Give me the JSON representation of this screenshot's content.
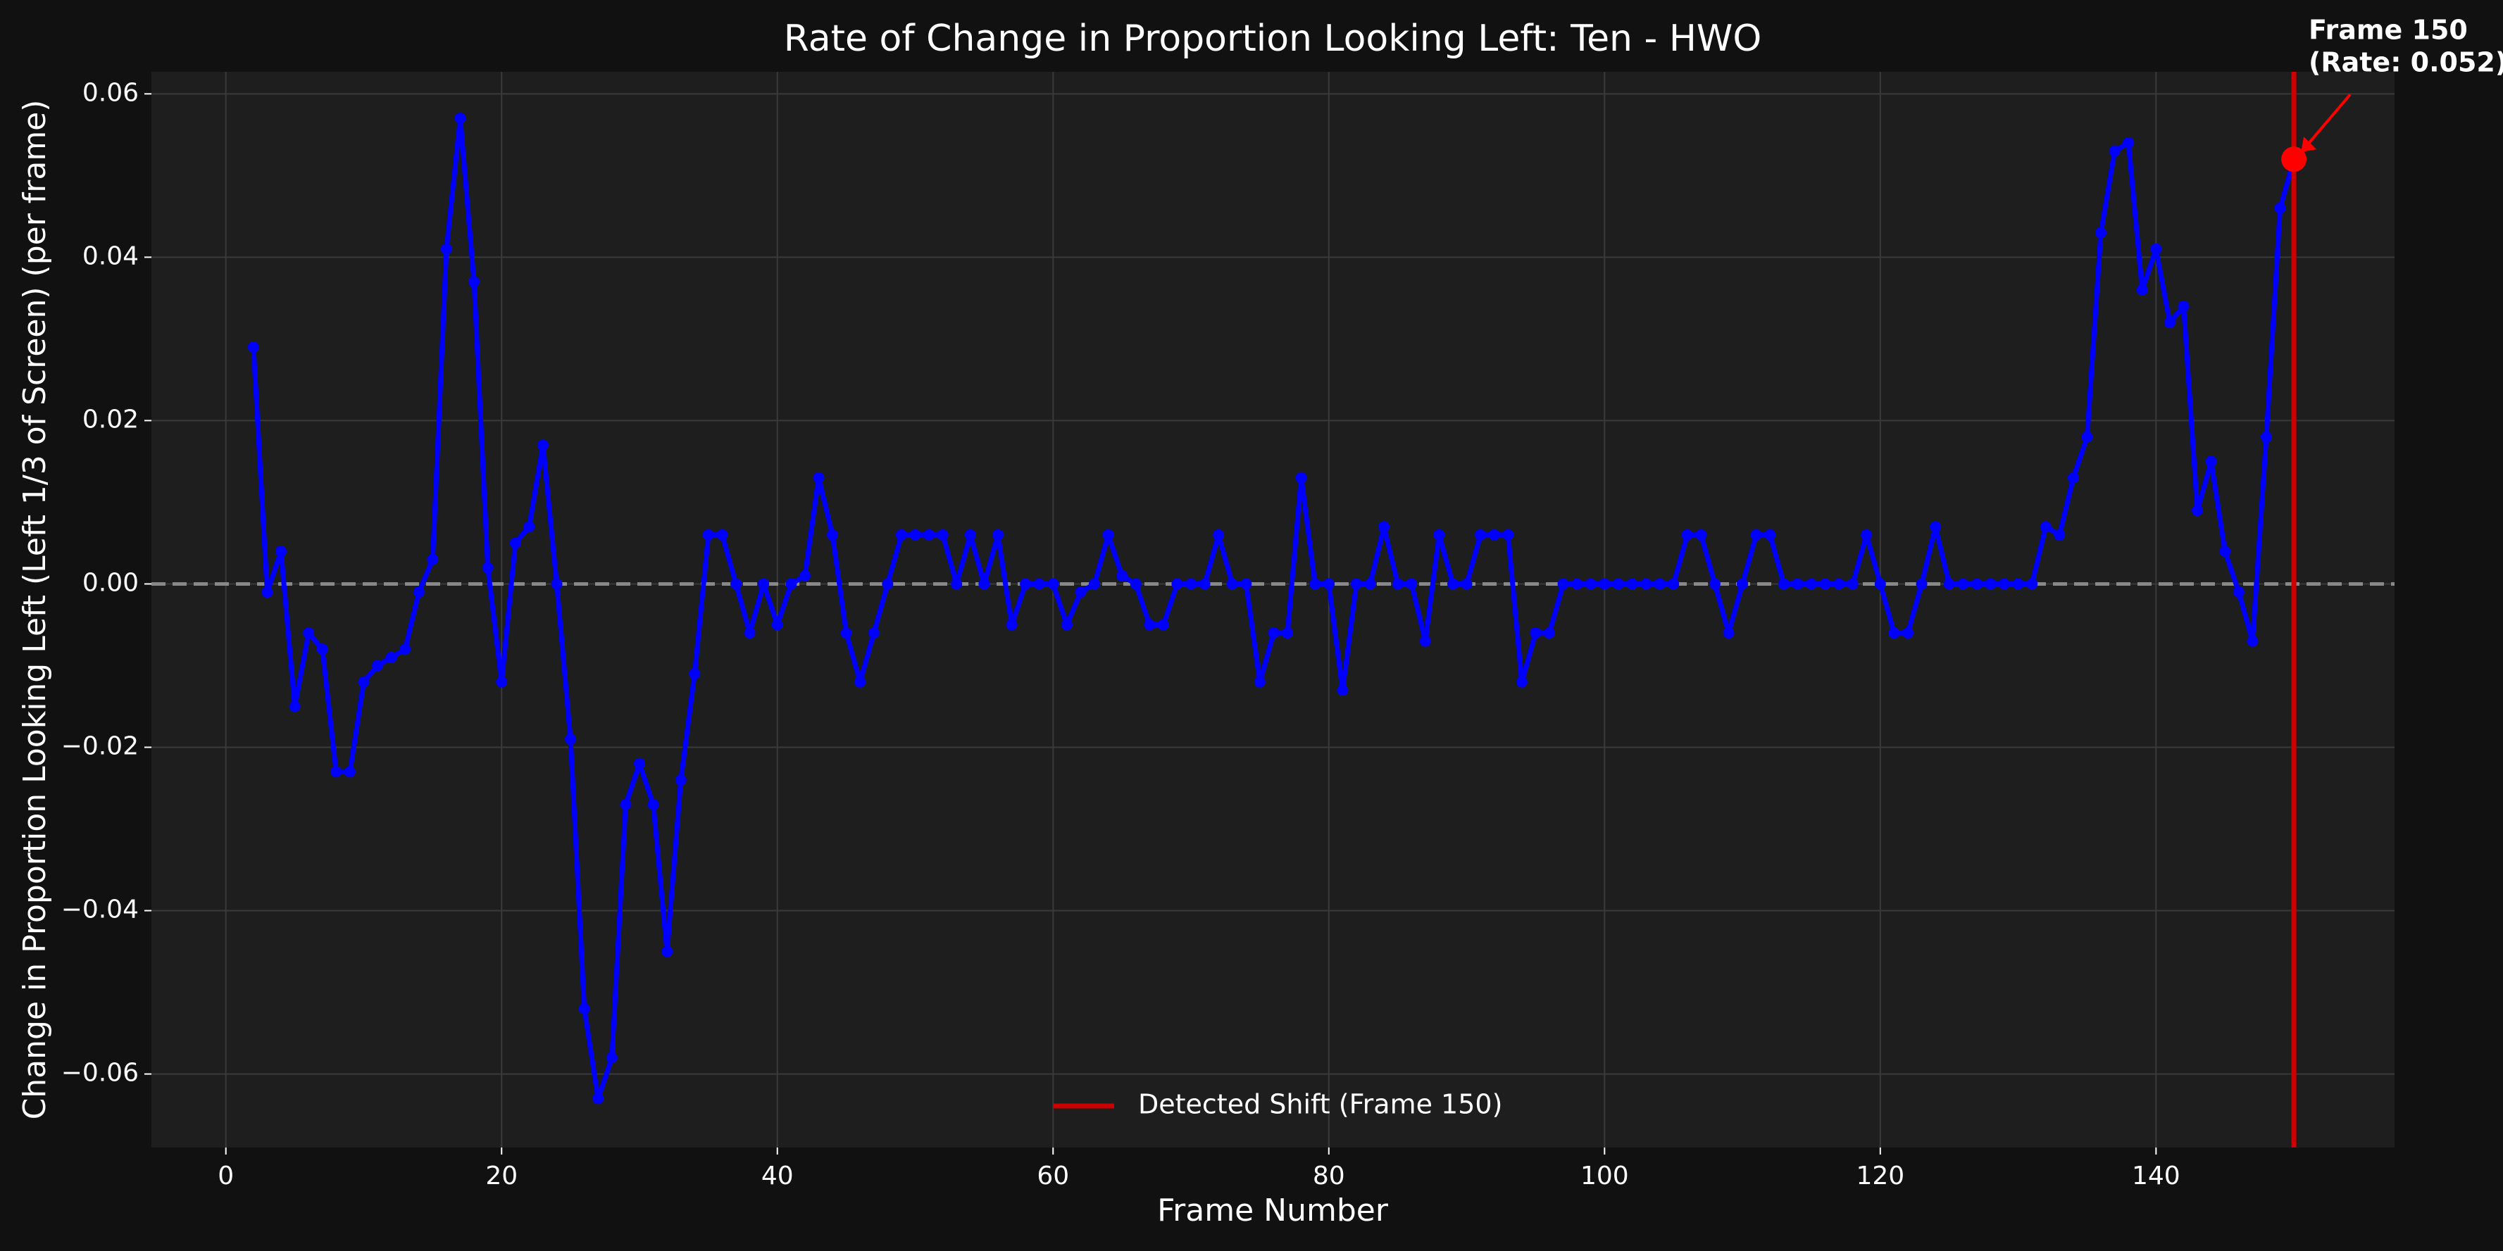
{
  "chart_data": {
    "type": "line",
    "title": "Rate of Change in Proportion Looking Left: Ten - HWO",
    "xlabel": "Frame Number",
    "ylabel": "Change in Proportion Looking Left (Left 1/3 of Screen) (per frame)",
    "x": [
      2,
      3,
      4,
      5,
      6,
      7,
      8,
      9,
      10,
      11,
      12,
      13,
      14,
      15,
      16,
      17,
      18,
      19,
      20,
      21,
      22,
      23,
      24,
      25,
      26,
      27,
      28,
      29,
      30,
      31,
      32,
      33,
      34,
      35,
      36,
      37,
      38,
      39,
      40,
      41,
      42,
      43,
      44,
      45,
      46,
      47,
      48,
      49,
      50,
      51,
      52,
      53,
      54,
      55,
      56,
      57,
      58,
      59,
      60,
      61,
      62,
      63,
      64,
      65,
      66,
      67,
      68,
      69,
      70,
      71,
      72,
      73,
      74,
      75,
      76,
      77,
      78,
      79,
      80,
      81,
      82,
      83,
      84,
      85,
      86,
      87,
      88,
      89,
      90,
      91,
      92,
      93,
      94,
      95,
      96,
      97,
      98,
      99,
      100,
      101,
      102,
      103,
      104,
      105,
      106,
      107,
      108,
      109,
      110,
      111,
      112,
      113,
      114,
      115,
      116,
      117,
      118,
      119,
      120,
      121,
      122,
      123,
      124,
      125,
      126,
      127,
      128,
      129,
      130,
      131,
      132,
      133,
      134,
      135,
      136,
      137,
      138,
      139,
      140,
      141,
      142,
      143,
      144,
      145,
      146,
      147,
      148,
      149,
      150
    ],
    "values": [
      0.029,
      -0.001,
      0.004,
      -0.015,
      -0.006,
      -0.008,
      -0.023,
      -0.023,
      -0.012,
      -0.01,
      -0.009,
      -0.008,
      -0.001,
      0.003,
      0.041,
      0.057,
      0.037,
      0.002,
      -0.012,
      0.005,
      0.007,
      0.017,
      0.0,
      -0.019,
      -0.052,
      -0.063,
      -0.058,
      -0.027,
      -0.022,
      -0.027,
      -0.045,
      -0.024,
      -0.011,
      0.006,
      0.006,
      0.0,
      -0.006,
      0.0,
      -0.005,
      0.0,
      0.001,
      0.013,
      0.006,
      -0.006,
      -0.012,
      -0.006,
      0.0,
      0.006,
      0.006,
      0.006,
      0.006,
      0.0,
      0.006,
      0.0,
      0.006,
      -0.005,
      0.0,
      0.0,
      0.0,
      -0.005,
      -0.001,
      0.0,
      0.006,
      0.001,
      0.0,
      -0.005,
      -0.005,
      0.0,
      0.0,
      0.0,
      0.006,
      0.0,
      0.0,
      -0.012,
      -0.006,
      -0.006,
      0.013,
      0.0,
      0.0,
      -0.013,
      0.0,
      0.0,
      0.007,
      0.0,
      0.0,
      -0.007,
      0.006,
      0.0,
      0.0,
      0.006,
      0.006,
      0.006,
      -0.012,
      -0.006,
      -0.006,
      0.0,
      0.0,
      0.0,
      0.0,
      0.0,
      0.0,
      0.0,
      0.0,
      0.0,
      0.006,
      0.006,
      0.0,
      -0.006,
      0.0,
      0.006,
      0.006,
      0.0,
      0.0,
      0.0,
      0.0,
      0.0,
      0.0,
      0.006,
      0.0,
      -0.006,
      -0.006,
      0.0,
      0.007,
      0.0,
      0.0,
      0.0,
      0.0,
      0.0,
      0.0,
      0.0,
      0.007,
      0.006,
      0.013,
      0.018,
      0.043,
      0.053,
      0.054,
      0.036,
      0.041,
      0.032,
      0.034,
      0.009,
      0.015,
      0.004,
      -0.001,
      -0.007,
      0.018,
      0.046,
      0.052
    ],
    "color": "#0000ff",
    "xlim": [
      -5.4,
      157.3
    ],
    "ylim": [
      -0.069,
      0.0627
    ],
    "xticks": [
      0,
      20,
      40,
      60,
      80,
      100,
      120,
      140
    ],
    "yticks": [
      {
        "value": -0.06,
        "label": "−0.06"
      },
      {
        "value": -0.04,
        "label": "−0.04"
      },
      {
        "value": -0.02,
        "label": "−0.02"
      },
      {
        "value": 0,
        "label": "0.00"
      },
      {
        "value": 0.02,
        "label": "0.02"
      },
      {
        "value": 0.04,
        "label": "0.04"
      },
      {
        "value": 0.06,
        "label": "0.06"
      }
    ],
    "grid": true,
    "hline": 0,
    "vline": {
      "x": 150,
      "label": "Detected Shift (Frame 150)",
      "color": "#cc0000"
    },
    "highlight": {
      "x": 150,
      "y": 0.052,
      "color": "#ff0000"
    },
    "annotation": [
      "Frame 150",
      "(Rate: 0.052)"
    ],
    "legend": "lower center"
  }
}
